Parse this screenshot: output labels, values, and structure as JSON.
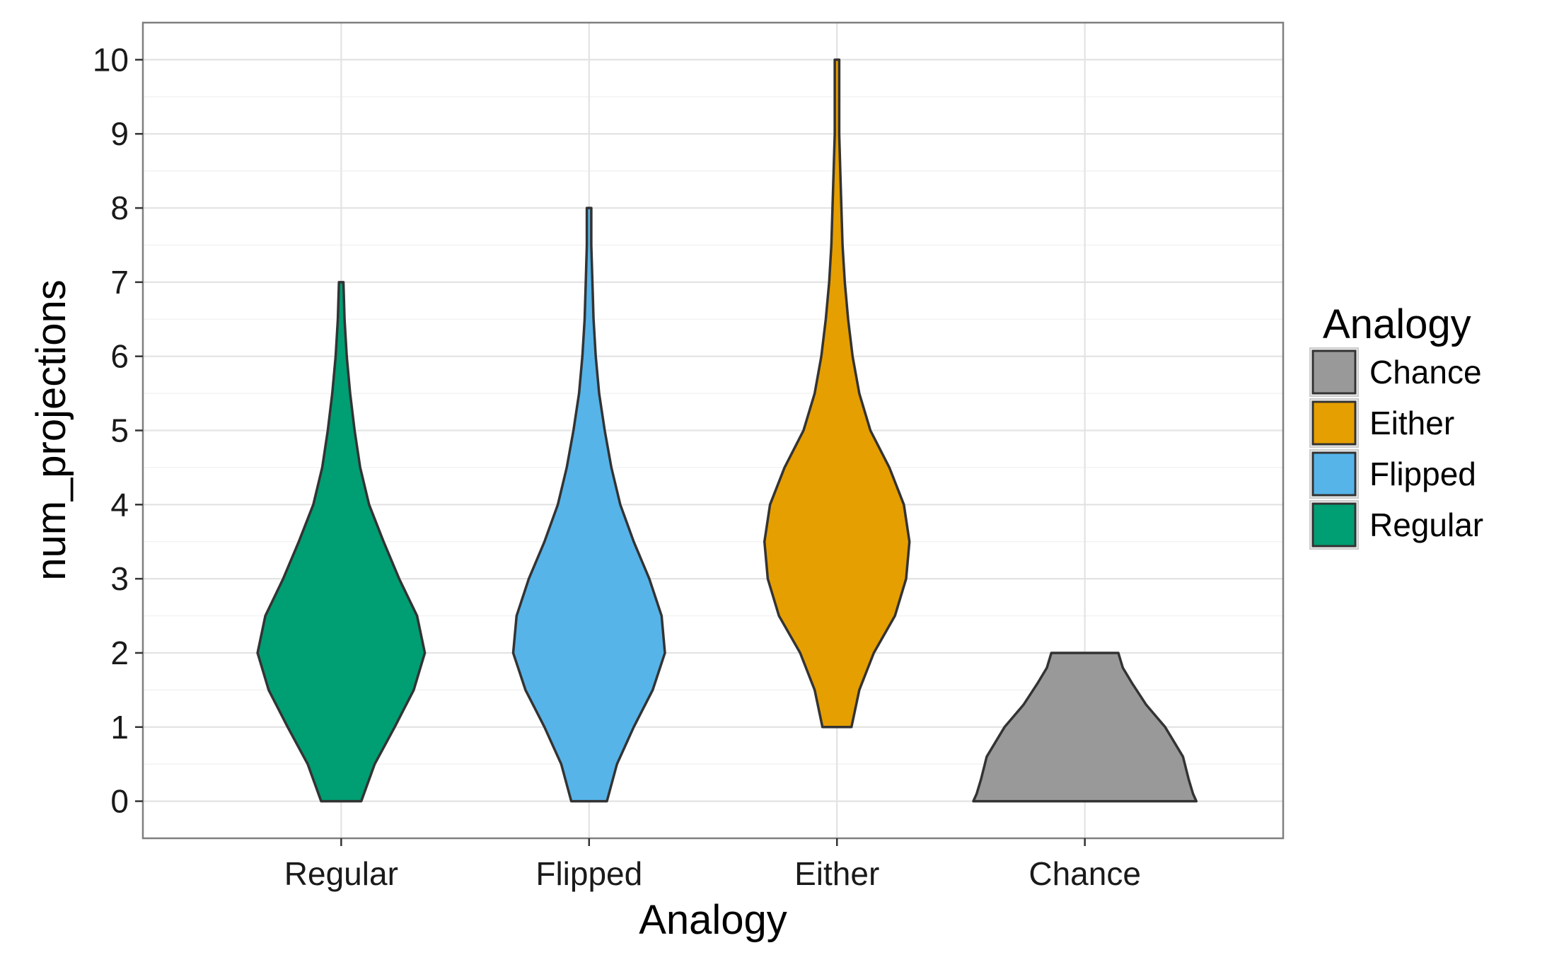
{
  "chart_data": {
    "type": "violin",
    "xlabel": "Analogy",
    "ylabel": "num_projections",
    "ylim": [
      -0.5,
      10.5
    ],
    "y_ticks": [
      0,
      1,
      2,
      3,
      4,
      5,
      6,
      7,
      8,
      9,
      10
    ],
    "grid": true,
    "categories": [
      "Regular",
      "Flipped",
      "Either",
      "Chance"
    ],
    "violins": [
      {
        "category": "Regular",
        "color": "#009E73",
        "min": 0,
        "max": 7,
        "density": [
          [
            0,
            0.18
          ],
          [
            0.5,
            0.3
          ],
          [
            1,
            0.48
          ],
          [
            1.5,
            0.65
          ],
          [
            2,
            0.75
          ],
          [
            2.5,
            0.68
          ],
          [
            3,
            0.52
          ],
          [
            3.5,
            0.38
          ],
          [
            4,
            0.25
          ],
          [
            4.5,
            0.17
          ],
          [
            5,
            0.12
          ],
          [
            5.5,
            0.08
          ],
          [
            6,
            0.05
          ],
          [
            6.5,
            0.03
          ],
          [
            7,
            0.02
          ]
        ]
      },
      {
        "category": "Flipped",
        "color": "#56B4E9",
        "min": 0,
        "max": 8,
        "density": [
          [
            0,
            0.16
          ],
          [
            0.5,
            0.25
          ],
          [
            1,
            0.4
          ],
          [
            1.5,
            0.57
          ],
          [
            2,
            0.68
          ],
          [
            2.5,
            0.65
          ],
          [
            3,
            0.54
          ],
          [
            3.5,
            0.4
          ],
          [
            4,
            0.28
          ],
          [
            4.5,
            0.2
          ],
          [
            5,
            0.14
          ],
          [
            5.5,
            0.09
          ],
          [
            6,
            0.06
          ],
          [
            6.5,
            0.04
          ],
          [
            7,
            0.03
          ],
          [
            7.5,
            0.02
          ],
          [
            8,
            0.02
          ]
        ]
      },
      {
        "category": "Either",
        "color": "#E69F00",
        "min": 1,
        "max": 10,
        "density": [
          [
            1,
            0.13
          ],
          [
            1.5,
            0.2
          ],
          [
            2,
            0.33
          ],
          [
            2.5,
            0.52
          ],
          [
            3,
            0.62
          ],
          [
            3.5,
            0.65
          ],
          [
            4,
            0.6
          ],
          [
            4.5,
            0.47
          ],
          [
            5,
            0.3
          ],
          [
            5.5,
            0.2
          ],
          [
            6,
            0.14
          ],
          [
            6.5,
            0.1
          ],
          [
            7,
            0.07
          ],
          [
            7.5,
            0.05
          ],
          [
            8,
            0.04
          ],
          [
            8.5,
            0.03
          ],
          [
            9,
            0.02
          ],
          [
            9.5,
            0.02
          ],
          [
            10,
            0.02
          ]
        ]
      },
      {
        "category": "Chance",
        "color": "#999999",
        "min": 0,
        "max": 2,
        "density": [
          [
            0,
            1.0
          ],
          [
            0.1,
            0.97
          ],
          [
            0.3,
            0.93
          ],
          [
            0.6,
            0.88
          ],
          [
            0.8,
            0.8
          ],
          [
            1.0,
            0.72
          ],
          [
            1.3,
            0.55
          ],
          [
            1.6,
            0.42
          ],
          [
            1.8,
            0.34
          ],
          [
            2,
            0.3
          ]
        ]
      }
    ],
    "legend": {
      "title": "Analogy",
      "position": "right",
      "entries": [
        {
          "label": "Chance",
          "color": "#999999"
        },
        {
          "label": "Either",
          "color": "#E69F00"
        },
        {
          "label": "Flipped",
          "color": "#56B4E9"
        },
        {
          "label": "Regular",
          "color": "#009E73"
        }
      ]
    }
  }
}
